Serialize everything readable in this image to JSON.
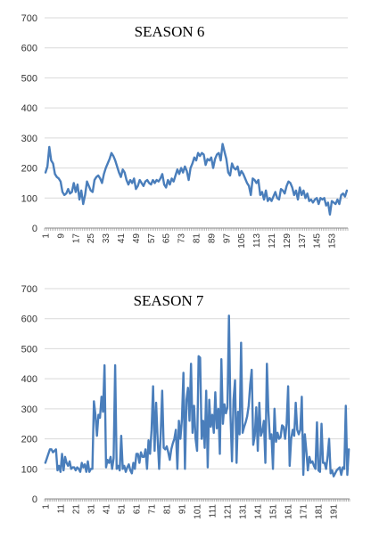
{
  "chart_data": [
    {
      "type": "line",
      "title": "SEASON 6",
      "xlabel": "",
      "ylabel": "",
      "ylim": [
        0,
        700
      ],
      "yticks": [
        0,
        100,
        200,
        300,
        400,
        500,
        600,
        700
      ],
      "xticks": [
        1,
        9,
        17,
        25,
        33,
        41,
        49,
        57,
        65,
        73,
        81,
        89,
        97,
        105,
        113,
        121,
        129,
        137,
        145,
        153
      ],
      "x_start": 1,
      "grid": true,
      "color": "#4a7ebb",
      "values": [
        185,
        205,
        270,
        225,
        215,
        180,
        170,
        165,
        155,
        120,
        110,
        115,
        130,
        115,
        120,
        150,
        120,
        145,
        95,
        125,
        80,
        110,
        155,
        140,
        125,
        120,
        160,
        170,
        175,
        165,
        150,
        180,
        200,
        215,
        230,
        250,
        240,
        225,
        205,
        185,
        170,
        195,
        185,
        160,
        145,
        160,
        150,
        165,
        130,
        140,
        160,
        150,
        140,
        155,
        160,
        150,
        145,
        160,
        150,
        160,
        155,
        165,
        180,
        145,
        135,
        160,
        145,
        165,
        155,
        175,
        195,
        180,
        200,
        185,
        205,
        190,
        160,
        200,
        215,
        235,
        225,
        250,
        240,
        250,
        245,
        210,
        230,
        225,
        235,
        200,
        230,
        245,
        250,
        225,
        280,
        255,
        230,
        185,
        175,
        215,
        200,
        195,
        205,
        175,
        190,
        180,
        165,
        150,
        140,
        110,
        165,
        160,
        150,
        160,
        110,
        120,
        95,
        125,
        90,
        100,
        90,
        105,
        120,
        100,
        95,
        130,
        125,
        115,
        140,
        155,
        150,
        135,
        110,
        125,
        95,
        135,
        110,
        125,
        100,
        115,
        90,
        95,
        85,
        95,
        100,
        80,
        100,
        95,
        100,
        75,
        85,
        45,
        90,
        85,
        80,
        95,
        80,
        110,
        115,
        105,
        125
      ]
    },
    {
      "type": "line",
      "title": "SEASON 7",
      "xlabel": "",
      "ylabel": "",
      "ylim": [
        0,
        700
      ],
      "yticks": [
        0,
        100,
        200,
        300,
        400,
        500,
        600,
        700
      ],
      "xticks": [
        1,
        11,
        21,
        31,
        41,
        51,
        61,
        71,
        81,
        91,
        101,
        111,
        121,
        131,
        141,
        151,
        161,
        171,
        181,
        191
      ],
      "x_start": 1,
      "grid": true,
      "color": "#4a7ebb",
      "values": [
        120,
        135,
        150,
        165,
        165,
        155,
        160,
        165,
        95,
        110,
        90,
        150,
        95,
        140,
        120,
        110,
        125,
        100,
        105,
        105,
        95,
        105,
        100,
        90,
        120,
        105,
        115,
        90,
        125,
        90,
        100,
        100,
        325,
        280,
        210,
        280,
        270,
        340,
        290,
        445,
        105,
        130,
        120,
        140,
        100,
        135,
        445,
        100,
        110,
        95,
        210,
        100,
        110,
        90,
        105,
        115,
        95,
        85,
        120,
        100,
        150,
        150,
        120,
        155,
        140,
        140,
        165,
        100,
        195,
        150,
        230,
        375,
        160,
        320,
        200,
        100,
        215,
        360,
        170,
        165,
        175,
        155,
        130,
        165,
        185,
        200,
        230,
        100,
        260,
        200,
        265,
        420,
        100,
        330,
        370,
        260,
        450,
        220,
        310,
        200,
        160,
        475,
        470,
        200,
        260,
        170,
        360,
        105,
        330,
        240,
        280,
        220,
        355,
        235,
        300,
        150,
        465,
        250,
        315,
        285,
        305,
        610,
        280,
        125,
        330,
        395,
        120,
        290,
        215,
        520,
        220,
        240,
        255,
        275,
        310,
        380,
        430,
        180,
        210,
        305,
        160,
        320,
        210,
        225,
        260,
        120,
        450,
        290,
        200,
        215,
        100,
        300,
        190,
        220,
        200,
        205,
        245,
        240,
        200,
        250,
        375,
        110,
        200,
        230,
        210,
        320,
        230,
        215,
        230,
        340,
        80,
        215,
        160,
        95,
        140,
        120,
        125,
        110,
        100,
        255,
        95,
        90,
        250,
        120,
        120,
        100,
        140,
        200,
        85,
        95,
        75,
        85,
        95,
        100,
        105,
        80,
        105,
        100,
        310,
        80,
        165
      ]
    }
  ]
}
